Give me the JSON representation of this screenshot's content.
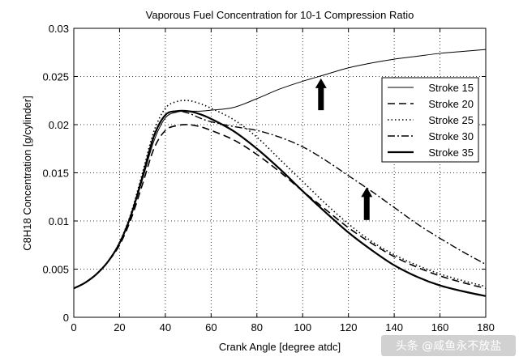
{
  "chart_data": {
    "type": "line",
    "title": "Vaporous Fuel Concentration for 10-1 Compression Ratio",
    "xlabel": "Crank Angle [degree atdc]",
    "ylabel": "C8H18 Concentration [g/cylinder]",
    "xlim": [
      0,
      180
    ],
    "ylim": [
      0,
      0.03
    ],
    "grid": true,
    "legend_position": "right",
    "x_ticks": [
      0,
      20,
      40,
      60,
      80,
      100,
      120,
      140,
      160,
      180
    ],
    "x_tick_labels": [
      "0",
      "20",
      "40",
      "60",
      "80",
      "100",
      "120",
      "140",
      "160",
      "180"
    ],
    "y_ticks": [
      0,
      0.005,
      0.01,
      0.015,
      0.02,
      0.025,
      0.03
    ],
    "y_tick_labels": [
      "0",
      "0.005",
      "0.01",
      "0.015",
      "0.02",
      "0.025",
      "0.03"
    ],
    "series": [
      {
        "name": "Stroke 15",
        "style": "solid-thin",
        "x": [
          0,
          5,
          10,
          15,
          20,
          25,
          30,
          35,
          40,
          45,
          50,
          55,
          60,
          70,
          80,
          90,
          100,
          110,
          120,
          130,
          140,
          150,
          160,
          170,
          180
        ],
        "y": [
          0.003,
          0.0036,
          0.0045,
          0.0058,
          0.0077,
          0.0105,
          0.0143,
          0.0183,
          0.0207,
          0.0213,
          0.0214,
          0.0214,
          0.0215,
          0.0218,
          0.0227,
          0.0237,
          0.0245,
          0.0252,
          0.0259,
          0.0264,
          0.0268,
          0.0271,
          0.0274,
          0.0276,
          0.0278
        ]
      },
      {
        "name": "Stroke 20",
        "style": "dashed",
        "x": [
          0,
          5,
          10,
          15,
          20,
          25,
          30,
          35,
          40,
          45,
          50,
          55,
          60,
          70,
          80,
          90,
          100,
          110,
          120,
          130,
          140,
          150,
          160,
          170,
          180
        ],
        "y": [
          0.003,
          0.0036,
          0.0045,
          0.0058,
          0.0075,
          0.0102,
          0.0138,
          0.0175,
          0.0194,
          0.0199,
          0.02,
          0.0198,
          0.0194,
          0.0184,
          0.0169,
          0.0151,
          0.0131,
          0.0112,
          0.0093,
          0.0077,
          0.0063,
          0.0052,
          0.0043,
          0.0036,
          0.003
        ]
      },
      {
        "name": "Stroke 25",
        "style": "dotted",
        "x": [
          0,
          5,
          10,
          15,
          20,
          25,
          30,
          35,
          40,
          45,
          50,
          55,
          60,
          70,
          80,
          90,
          100,
          110,
          120,
          130,
          140,
          150,
          160,
          170,
          180
        ],
        "y": [
          0.003,
          0.0036,
          0.0045,
          0.0058,
          0.0078,
          0.0108,
          0.015,
          0.0193,
          0.0217,
          0.0224,
          0.0225,
          0.0222,
          0.0217,
          0.0205,
          0.0187,
          0.0164,
          0.0141,
          0.0118,
          0.0097,
          0.0079,
          0.0065,
          0.0054,
          0.0045,
          0.0038,
          0.0032
        ]
      },
      {
        "name": "Stroke 30",
        "style": "dash-dot",
        "x": [
          0,
          5,
          10,
          15,
          20,
          25,
          30,
          35,
          40,
          45,
          50,
          55,
          60,
          70,
          80,
          90,
          100,
          110,
          120,
          130,
          140,
          150,
          160,
          170,
          180
        ],
        "y": [
          0.003,
          0.0036,
          0.0045,
          0.0058,
          0.0077,
          0.0106,
          0.0146,
          0.0187,
          0.021,
          0.0214,
          0.0212,
          0.0207,
          0.0203,
          0.0198,
          0.0194,
          0.0187,
          0.0177,
          0.0163,
          0.0147,
          0.0131,
          0.0114,
          0.0097,
          0.0082,
          0.0068,
          0.0055
        ]
      },
      {
        "name": "Stroke 35",
        "style": "solid-thick",
        "x": [
          0,
          5,
          10,
          15,
          20,
          25,
          30,
          35,
          40,
          45,
          50,
          55,
          60,
          70,
          80,
          90,
          100,
          110,
          120,
          130,
          140,
          150,
          160,
          170,
          180
        ],
        "y": [
          0.003,
          0.0036,
          0.0045,
          0.0058,
          0.0077,
          0.0106,
          0.0146,
          0.0188,
          0.021,
          0.0214,
          0.0214,
          0.0211,
          0.0206,
          0.0193,
          0.0175,
          0.0154,
          0.0131,
          0.0109,
          0.0088,
          0.007,
          0.0054,
          0.0042,
          0.0033,
          0.0027,
          0.0022
        ]
      }
    ],
    "annotations": [
      {
        "type": "arrow-up",
        "x": 108,
        "y_tail": 0.0215,
        "y_head": 0.0248
      },
      {
        "type": "arrow-up",
        "x": 128,
        "y_tail": 0.0101,
        "y_head": 0.0135
      }
    ]
  },
  "watermark": "头条 @咸鱼永不放盐"
}
